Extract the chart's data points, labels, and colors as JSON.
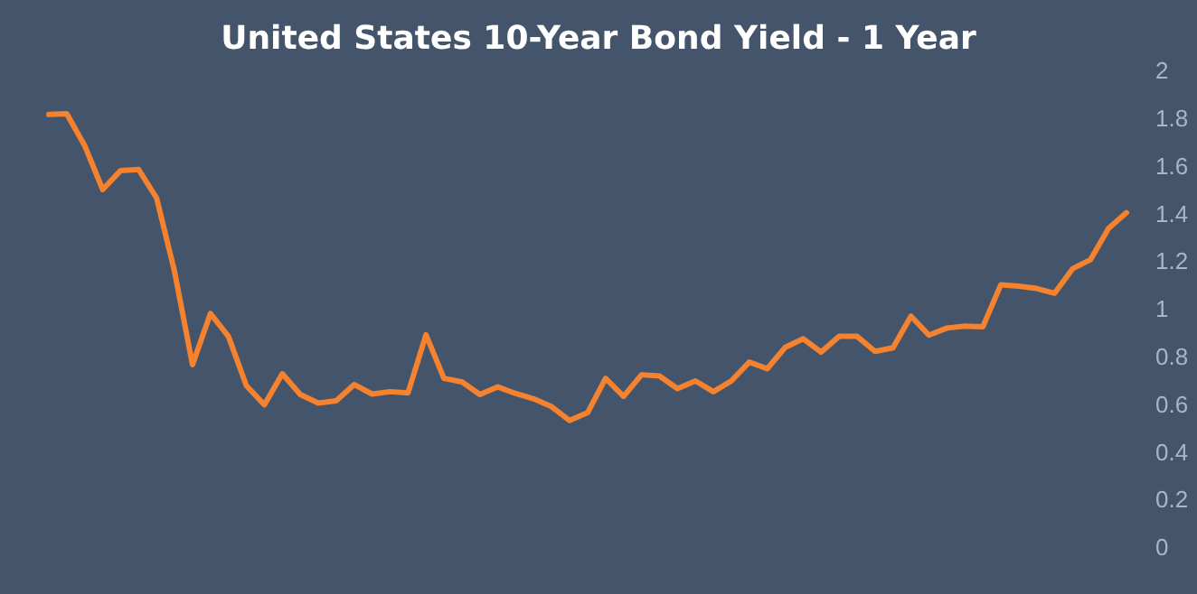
{
  "chart_data": {
    "type": "line",
    "title": "United States 10-Year Bond Yield - 1 Year",
    "categories": [
      null,
      null,
      null,
      null,
      null,
      null,
      null,
      null,
      null,
      null,
      null,
      null,
      null,
      null,
      null,
      null,
      null,
      null,
      null,
      null,
      null,
      null,
      null,
      null,
      null,
      null,
      null,
      null,
      null,
      null,
      null,
      null,
      null,
      null,
      null,
      null,
      null,
      null,
      null,
      null,
      null,
      null,
      null,
      null,
      null,
      null,
      null,
      null,
      null,
      null,
      null,
      null,
      null,
      null,
      null,
      null,
      null,
      null,
      null,
      null,
      null
    ],
    "series": [
      {
        "color": "#f5822f",
        "values": [
          1.815,
          1.818,
          1.684,
          1.5,
          1.58,
          1.584,
          1.465,
          1.156,
          0.765,
          0.98,
          0.884,
          0.677,
          0.597,
          0.727,
          0.64,
          0.604,
          0.614,
          0.682,
          0.642,
          0.652,
          0.647,
          0.891,
          0.708,
          0.693,
          0.64,
          0.672,
          0.644,
          0.622,
          0.589,
          0.531,
          0.564,
          0.708,
          0.632,
          0.723,
          0.718,
          0.665,
          0.697,
          0.652,
          0.697,
          0.776,
          0.748,
          0.838,
          0.874,
          0.818,
          0.884,
          0.884,
          0.821,
          0.836,
          0.969,
          0.889,
          0.919,
          0.927,
          0.924,
          1.1,
          1.095,
          1.085,
          1.065,
          1.168,
          1.206,
          1.337,
          1.403
        ]
      }
    ],
    "ylim": [
      0,
      2
    ],
    "yticks": [
      0,
      0.2,
      0.4,
      0.6,
      0.8,
      1,
      1.2,
      1.4,
      1.6,
      1.8,
      2
    ],
    "grid": false,
    "legend": false,
    "marker": "none",
    "line_style": "solid"
  }
}
